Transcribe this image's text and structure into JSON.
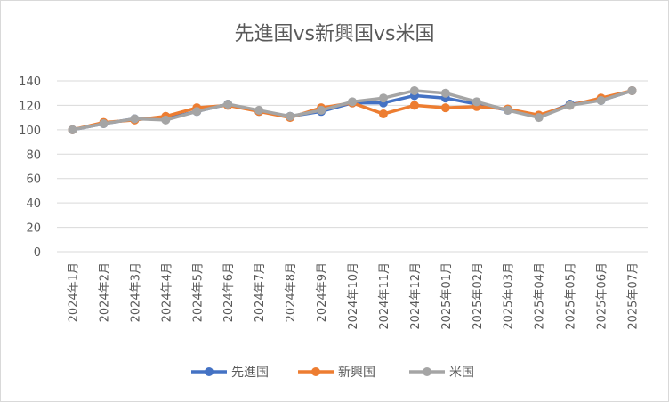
{
  "chart_data": {
    "type": "line",
    "title": "先進国vs新興国vs米国",
    "xlabel": "",
    "ylabel": "",
    "ylim": [
      0,
      140
    ],
    "yticks": [
      0,
      20,
      40,
      60,
      80,
      100,
      120,
      140
    ],
    "grid": true,
    "legend": "bottom",
    "categories": [
      "2024年1月",
      "2024年2月",
      "2024年3月",
      "2024年4月",
      "2024年5月",
      "2024年6月",
      "2024年7月",
      "2024年8月",
      "2024年9月",
      "2024年10月",
      "2024年11月",
      "2024年12月",
      "2025年01月",
      "2025年02月",
      "2025年03月",
      "2025年04月",
      "2025年05月",
      "2025年06月",
      "2025年07月"
    ],
    "series": [
      {
        "name": "先進国",
        "color": "#4472C4",
        "values": [
          100,
          105,
          109,
          109,
          115,
          121,
          115,
          111,
          115,
          122,
          122,
          128,
          126,
          121,
          116,
          111,
          121,
          124,
          132
        ]
      },
      {
        "name": "新興国",
        "color": "#ED7D31",
        "values": [
          100,
          106,
          108,
          111,
          118,
          120,
          115,
          110,
          118,
          122,
          113,
          120,
          118,
          119,
          117,
          112,
          120,
          126,
          132
        ]
      },
      {
        "name": "米国",
        "color": "#A5A5A5",
        "values": [
          100,
          105,
          109,
          108,
          115,
          121,
          116,
          111,
          116,
          123,
          126,
          132,
          130,
          123,
          116,
          110,
          120,
          124,
          132
        ]
      }
    ]
  }
}
